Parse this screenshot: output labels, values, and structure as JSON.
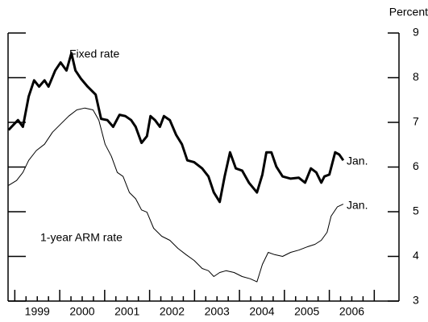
{
  "chart_data": {
    "type": "line",
    "y_axis_label": "Percent",
    "annotations": [
      "Fixed rate",
      "1-year ARM rate",
      "Jan.",
      "Jan."
    ],
    "xlim": [
      1998.85,
      2007.55
    ],
    "xticks": [
      1999,
      2000,
      2001,
      2002,
      2003,
      2004,
      2005,
      2006,
      2007
    ],
    "xtick_labels": [
      {
        "value": 1999.5,
        "label": "1999"
      },
      {
        "value": 2000.5,
        "label": "2000"
      },
      {
        "value": 2001.5,
        "label": "2001"
      },
      {
        "value": 2002.5,
        "label": "2002"
      },
      {
        "value": 2003.5,
        "label": "2003"
      },
      {
        "value": 2004.5,
        "label": "2004"
      },
      {
        "value": 2005.5,
        "label": "2005"
      },
      {
        "value": 2006.5,
        "label": "2006"
      }
    ],
    "ylim": [
      3,
      9
    ],
    "yticks": [
      3,
      4,
      5,
      6,
      7,
      8,
      9
    ],
    "series": [
      {
        "name": "Fixed rate",
        "color": "#000000",
        "width": 3,
        "x": [
          1998.86,
          1999.07,
          1999.18,
          1999.31,
          1999.43,
          1999.54,
          1999.66,
          1999.75,
          1999.9,
          2000.02,
          2000.15,
          2000.26,
          2000.35,
          2000.47,
          2000.62,
          2000.8,
          2000.92,
          2001.06,
          2001.19,
          2001.33,
          2001.46,
          2001.59,
          2001.69,
          2001.82,
          2001.94,
          2002.02,
          2002.12,
          2002.23,
          2002.32,
          2002.45,
          2002.59,
          2002.72,
          2002.84,
          2002.99,
          2003.17,
          2003.31,
          2003.43,
          2003.56,
          2003.67,
          2003.79,
          2003.92,
          2004.06,
          2004.21,
          2004.39,
          2004.51,
          2004.6,
          2004.71,
          2004.82,
          2004.96,
          2005.14,
          2005.32,
          2005.46,
          2005.59,
          2005.71,
          2005.82,
          2005.89,
          2006.0,
          2006.13,
          2006.22,
          2006.31
        ],
        "values": [
          6.83,
          7.05,
          6.9,
          7.58,
          7.94,
          7.8,
          7.94,
          7.8,
          8.16,
          8.34,
          8.16,
          8.55,
          8.16,
          7.98,
          7.8,
          7.62,
          7.08,
          7.05,
          6.9,
          7.17,
          7.14,
          7.05,
          6.9,
          6.54,
          6.69,
          7.14,
          7.05,
          6.9,
          7.14,
          7.05,
          6.72,
          6.51,
          6.15,
          6.11,
          5.97,
          5.79,
          5.43,
          5.22,
          5.79,
          6.33,
          5.97,
          5.92,
          5.65,
          5.43,
          5.83,
          6.33,
          6.33,
          6.01,
          5.79,
          5.74,
          5.76,
          5.65,
          5.97,
          5.88,
          5.65,
          5.79,
          5.83,
          6.33,
          6.28,
          6.15
        ]
      },
      {
        "name": "1-year ARM rate",
        "color": "#000000",
        "width": 1,
        "x": [
          1998.86,
          1999.04,
          1999.18,
          1999.31,
          1999.48,
          1999.66,
          1999.84,
          2000.02,
          2000.2,
          2000.38,
          2000.56,
          2000.74,
          2000.87,
          2001.01,
          2001.15,
          2001.28,
          2001.41,
          2001.55,
          2001.69,
          2001.82,
          2001.94,
          2002.09,
          2002.27,
          2002.45,
          2002.63,
          2002.81,
          2002.99,
          2003.17,
          2003.31,
          2003.43,
          2003.56,
          2003.7,
          2003.88,
          2004.06,
          2004.24,
          2004.39,
          2004.51,
          2004.64,
          2004.78,
          2004.96,
          2005.14,
          2005.32,
          2005.5,
          2005.68,
          2005.82,
          2005.95,
          2006.04,
          2006.18,
          2006.31
        ],
        "values": [
          5.59,
          5.7,
          5.88,
          6.15,
          6.37,
          6.51,
          6.78,
          6.96,
          7.14,
          7.28,
          7.32,
          7.28,
          7.05,
          6.51,
          6.24,
          5.88,
          5.79,
          5.43,
          5.29,
          5.04,
          4.99,
          4.63,
          4.45,
          4.36,
          4.18,
          4.04,
          3.91,
          3.73,
          3.68,
          3.55,
          3.64,
          3.68,
          3.64,
          3.55,
          3.5,
          3.43,
          3.82,
          4.09,
          4.04,
          4.0,
          4.09,
          4.14,
          4.21,
          4.27,
          4.36,
          4.54,
          4.9,
          5.11,
          5.17
        ]
      }
    ]
  }
}
